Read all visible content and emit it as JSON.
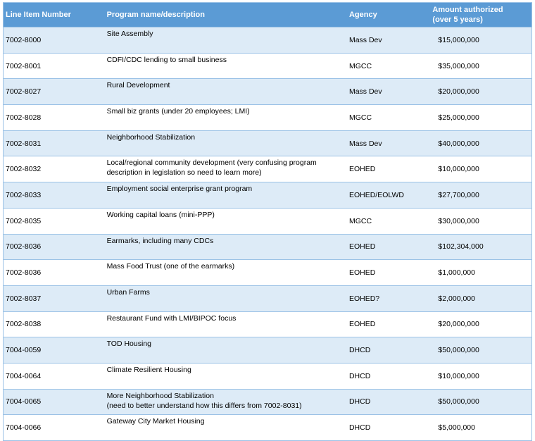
{
  "headers": {
    "line_item": "Line Item Number",
    "program": "Program name/description",
    "agency": "Agency",
    "amount_line1": "Amount authorized",
    "amount_line2": "(over 5 years)"
  },
  "rows": [
    {
      "line": "7002-8000",
      "program": "Site Assembly",
      "program2": "",
      "agency": "Mass Dev",
      "amount": "$15,000,000"
    },
    {
      "line": "7002-8001",
      "program": "CDFI/CDC lending to small business",
      "program2": "",
      "agency": "MGCC",
      "amount": "$35,000,000"
    },
    {
      "line": "7002-8027",
      "program": "Rural Development",
      "program2": "",
      "agency": "Mass Dev",
      "amount": "$20,000,000"
    },
    {
      "line": "7002-8028",
      "program": "Small biz grants (under 20 employees; LMI)",
      "program2": "",
      "agency": "MGCC",
      "amount": "$25,000,000"
    },
    {
      "line": "7002-8031",
      "program": "Neighborhood Stabilization",
      "program2": "",
      "agency": "Mass Dev",
      "amount": "$40,000,000"
    },
    {
      "line": "7002-8032",
      "program": "Local/regional community development (very confusing program",
      "program2": "description in legislation so need to learn more)",
      "agency": "EOHED",
      "amount": "$10,000,000"
    },
    {
      "line": "7002-8033",
      "program": "Employment social enterprise grant program",
      "program2": "",
      "agency": "EOHED/EOLWD",
      "amount": "$27,700,000"
    },
    {
      "line": "7002-8035",
      "program": "Working capital loans (mini-PPP)",
      "program2": "",
      "agency": "MGCC",
      "amount": "$30,000,000"
    },
    {
      "line": "7002-8036",
      "program": "Earmarks, including many CDCs",
      "program2": "",
      "agency": "EOHED",
      "amount": "$102,304,000"
    },
    {
      "line": "7002-8036",
      "program": "Mass Food Trust (one of the earmarks)",
      "program2": "",
      "agency": "EOHED",
      "amount": "$1,000,000"
    },
    {
      "line": "7002-8037",
      "program": "Urban Farms",
      "program2": "",
      "agency": "EOHED?",
      "amount": "$2,000,000"
    },
    {
      "line": "7002-8038",
      "program": "Restaurant Fund with LMI/BIPOC focus",
      "program2": "",
      "agency": "EOHED",
      "amount": "$20,000,000"
    },
    {
      "line": "7004-0059",
      "program": "TOD Housing",
      "program2": "",
      "agency": "DHCD",
      "amount": "$50,000,000"
    },
    {
      "line": "7004-0064",
      "program": "Climate Resilient Housing",
      "program2": "",
      "agency": "DHCD",
      "amount": "$10,000,000"
    },
    {
      "line": "7004-0065",
      "program": "More Neighborhood Stabilization",
      "program2": "(need to better understand how this differs from 7002-8031)",
      "agency": "DHCD",
      "amount": "$50,000,000"
    },
    {
      "line": "7004-0066",
      "program": "Gateway City Market Housing",
      "program2": "",
      "agency": "DHCD",
      "amount": "$5,000,000"
    }
  ]
}
